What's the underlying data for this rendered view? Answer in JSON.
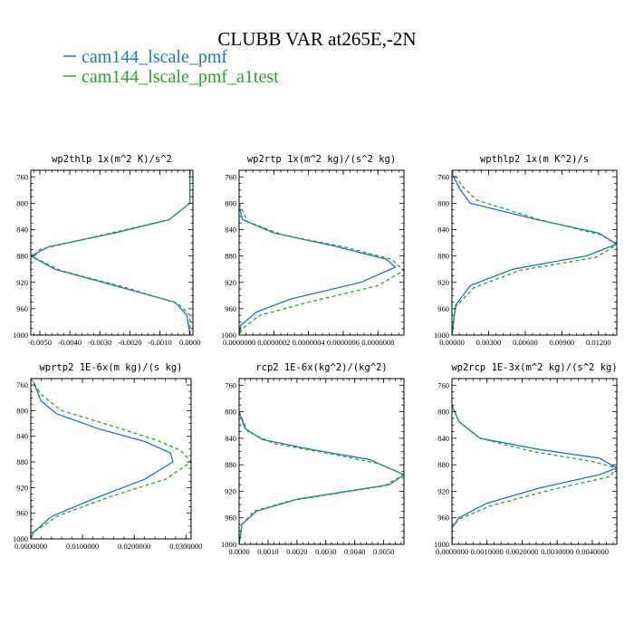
{
  "figure": {
    "title": "CLUBB VAR at265E,-2N",
    "legend": [
      {
        "label": "cam144_lscale_pmf",
        "color": "#1f77b4"
      },
      {
        "label": "cam144_lscale_pmf_a1test",
        "color": "#2ca02c"
      }
    ]
  },
  "chart_data": [
    {
      "type": "line",
      "title": "wp2thlp   1x(m^2 K)/s^2",
      "ylim": [
        1000,
        750
      ],
      "yticks": [
        760,
        800,
        840,
        880,
        920,
        960,
        1000
      ],
      "xlim": [
        -0.0053,
        0.0001
      ],
      "xticks": [
        -0.005,
        -0.004,
        -0.003,
        -0.002,
        -0.001,
        0.0
      ],
      "xticklabels": [
        "-0.0050",
        "-0.0040",
        "-0.0030",
        "-0.0020",
        "-0.0010",
        "0.0000"
      ],
      "series": [
        {
          "name": "cam144_lscale_pmf",
          "color": "#1f77b4",
          "dash": "",
          "points": [
            [
              0.0,
              750
            ],
            [
              0.0,
              800
            ],
            [
              -0.0007,
              825
            ],
            [
              -0.0025,
              845
            ],
            [
              -0.0047,
              866
            ],
            [
              -0.0053,
              880
            ],
            [
              -0.0045,
              900
            ],
            [
              -0.0025,
              925
            ],
            [
              -0.0005,
              950
            ],
            [
              -0.0001,
              970
            ],
            [
              0.0,
              1000
            ]
          ]
        },
        {
          "name": "cam144_lscale_pmf_a1test",
          "color": "#2ca02c",
          "dash": "4,3",
          "points": [
            [
              0.0,
              750
            ],
            [
              0.0,
              800
            ],
            [
              -0.0007,
              825
            ],
            [
              -0.0028,
              847
            ],
            [
              -0.005,
              870
            ],
            [
              -0.0052,
              882
            ],
            [
              -0.0043,
              902
            ],
            [
              -0.0022,
              927
            ],
            [
              -0.0004,
              952
            ],
            [
              0.0,
              970
            ],
            [
              0.0,
              1000
            ]
          ]
        }
      ]
    },
    {
      "type": "line",
      "title": "wp2rtp   1x(m^2 kg)/(s^2 kg)",
      "ylim": [
        1000,
        750
      ],
      "yticks": [
        760,
        800,
        840,
        880,
        920,
        960,
        1000
      ],
      "xlim": [
        0.0,
        9.5e-07
      ],
      "xticks": [
        0.0,
        2e-07,
        4e-07,
        6e-07,
        8e-07
      ],
      "xticklabels": [
        "0.0000000",
        "0.0000002",
        "0.0000004",
        "0.0000006",
        "0.0000008"
      ],
      "series": [
        {
          "name": "cam144_lscale_pmf",
          "color": "#1f77b4",
          "dash": "",
          "points": [
            [
              0.0,
              805
            ],
            [
              2e-08,
              825
            ],
            [
              2e-07,
              845
            ],
            [
              5.5e-07,
              865
            ],
            [
              8.5e-07,
              885
            ],
            [
              9e-07,
              897
            ],
            [
              7e-07,
              920
            ],
            [
              3e-07,
              945
            ],
            [
              1e-07,
              965
            ],
            [
              1e-08,
              985
            ],
            [
              0.0,
              1000
            ]
          ]
        },
        {
          "name": "cam144_lscale_pmf_a1test",
          "color": "#2ca02c",
          "dash": "4,3",
          "points": [
            [
              0.0,
              800
            ],
            [
              5e-08,
              828
            ],
            [
              2.5e-07,
              848
            ],
            [
              6e-07,
              866
            ],
            [
              8.8e-07,
              885
            ],
            [
              9.5e-07,
              902
            ],
            [
              8e-07,
              925
            ],
            [
              4e-07,
              950
            ],
            [
              1.2e-07,
              970
            ],
            [
              2e-08,
              990
            ],
            [
              0.0,
              1000
            ]
          ]
        }
      ]
    },
    {
      "type": "line",
      "title": "wpthlp2   1x(m K^2)/s",
      "ylim": [
        1000,
        750
      ],
      "yticks": [
        760,
        800,
        840,
        880,
        920,
        960,
        1000
      ],
      "xlim": [
        0.0,
        0.0135
      ],
      "xticks": [
        0.0,
        0.003,
        0.006,
        0.009,
        0.012
      ],
      "xticklabels": [
        "0.00000",
        "0.00300",
        "0.00600",
        "0.00900",
        "0.01200"
      ],
      "series": [
        {
          "name": "cam144_lscale_pmf",
          "color": "#1f77b4",
          "dash": "",
          "points": [
            [
              0.0,
              755
            ],
            [
              0.0007,
              780
            ],
            [
              0.0015,
              800
            ],
            [
              0.007,
              825
            ],
            [
              0.012,
              845
            ],
            [
              0.0135,
              862
            ],
            [
              0.011,
              880
            ],
            [
              0.005,
              900
            ],
            [
              0.0015,
              925
            ],
            [
              0.0003,
              955
            ],
            [
              0.0,
              1000
            ]
          ]
        },
        {
          "name": "cam144_lscale_pmf_a1test",
          "color": "#2ca02c",
          "dash": "4,3",
          "points": [
            [
              0.0,
              750
            ],
            [
              0.0009,
              775
            ],
            [
              0.002,
              795
            ],
            [
              0.0072,
              825
            ],
            [
              0.0122,
              848
            ],
            [
              0.0135,
              863
            ],
            [
              0.0118,
              882
            ],
            [
              0.0055,
              902
            ],
            [
              0.0018,
              928
            ],
            [
              0.0003,
              957
            ],
            [
              0.0,
              1000
            ]
          ]
        }
      ]
    },
    {
      "type": "line",
      "title": "wprtp2   1E-6x(m kg)/(s kg)",
      "ylim": [
        1000,
        750
      ],
      "yticks": [
        760,
        800,
        840,
        880,
        920,
        960,
        1000
      ],
      "xlim": [
        0.0,
        0.031
      ],
      "xticks": [
        0.0,
        0.01,
        0.02,
        0.03
      ],
      "xticklabels": [
        "0.0000000",
        "0.0100000",
        "0.0200000",
        "0.0300000"
      ],
      "series": [
        {
          "name": "cam144_lscale_pmf",
          "color": "#1f77b4",
          "dash": "",
          "points": [
            [
              0.0005,
              755
            ],
            [
              0.002,
              785
            ],
            [
              0.005,
              805
            ],
            [
              0.013,
              828
            ],
            [
              0.022,
              848
            ],
            [
              0.027,
              866
            ],
            [
              0.0275,
              880
            ],
            [
              0.022,
              907
            ],
            [
              0.012,
              938
            ],
            [
              0.004,
              965
            ],
            [
              0.0005,
              990
            ],
            [
              0.0,
              1000
            ]
          ]
        },
        {
          "name": "cam144_lscale_pmf_a1test",
          "color": "#2ca02c",
          "dash": "4,3",
          "points": [
            [
              0.0,
              750
            ],
            [
              0.002,
              775
            ],
            [
              0.006,
              800
            ],
            [
              0.015,
              822
            ],
            [
              0.024,
              845
            ],
            [
              0.029,
              862
            ],
            [
              0.031,
              880
            ],
            [
              0.026,
              907
            ],
            [
              0.015,
              935
            ],
            [
              0.005,
              965
            ],
            [
              0.0005,
              990
            ],
            [
              0.0,
              1000
            ]
          ]
        }
      ]
    },
    {
      "type": "line",
      "title": "rcp2   1E-6x(kg^2)/(kg^2)",
      "ylim": [
        1000,
        750
      ],
      "yticks": [
        760,
        800,
        840,
        880,
        920,
        960,
        1000
      ],
      "xlim": [
        0.0,
        0.0057
      ],
      "xticks": [
        0.0,
        0.001,
        0.002,
        0.003,
        0.004,
        0.005
      ],
      "xticklabels": [
        "0.0000",
        "0.0010",
        "0.0020",
        "0.0030",
        "0.0040",
        "0.0050"
      ],
      "series": [
        {
          "name": "cam144_lscale_pmf",
          "color": "#1f77b4",
          "dash": "",
          "points": [
            [
              0.0,
              800
            ],
            [
              0.0002,
              825
            ],
            [
              0.0008,
              842
            ],
            [
              0.0025,
              857
            ],
            [
              0.0045,
              872
            ],
            [
              0.0057,
              895
            ],
            [
              0.0052,
              910
            ],
            [
              0.002,
              932
            ],
            [
              0.0006,
              950
            ],
            [
              0.0001,
              970
            ],
            [
              0.0,
              1000
            ]
          ]
        },
        {
          "name": "cam144_lscale_pmf_a1test",
          "color": "#2ca02c",
          "dash": "4,3",
          "points": [
            [
              0.0,
              800
            ],
            [
              0.0003,
              830
            ],
            [
              0.0012,
              848
            ],
            [
              0.003,
              862
            ],
            [
              0.0048,
              878
            ],
            [
              0.0057,
              895
            ],
            [
              0.005,
              912
            ],
            [
              0.0018,
              934
            ],
            [
              0.0005,
              950
            ],
            [
              0.0001,
              970
            ],
            [
              0.0,
              1000
            ]
          ]
        }
      ]
    },
    {
      "type": "line",
      "title": "wp2rcp   1E-3x(m^2 kg)/(s^2 kg)",
      "ylim": [
        1000,
        750
      ],
      "yticks": [
        760,
        800,
        840,
        880,
        920,
        960,
        1000
      ],
      "xlim": [
        0.0,
        0.0047
      ],
      "xticks": [
        0.0,
        0.001,
        0.002,
        0.003,
        0.004
      ],
      "xticklabels": [
        "0.0000000",
        "0.0010000",
        "0.0020000",
        "0.0030000",
        "0.0040000"
      ],
      "series": [
        {
          "name": "cam144_lscale_pmf",
          "color": "#1f77b4",
          "dash": "",
          "points": [
            [
              0.0,
              790
            ],
            [
              0.0002,
              815
            ],
            [
              0.0008,
              840
            ],
            [
              0.0025,
              857
            ],
            [
              0.0042,
              870
            ],
            [
              0.0047,
              885
            ],
            [
              0.0042,
              895
            ],
            [
              0.0025,
              915
            ],
            [
              0.001,
              938
            ],
            [
              0.0002,
              960
            ],
            [
              0.0,
              975
            ],
            [
              0.0,
              1000
            ]
          ]
        },
        {
          "name": "cam144_lscale_pmf_a1test",
          "color": "#2ca02c",
          "dash": "4,3",
          "points": [
            [
              0.0,
              790
            ],
            [
              0.0002,
              815
            ],
            [
              0.0008,
              840
            ],
            [
              0.0023,
              860
            ],
            [
              0.004,
              875
            ],
            [
              0.0047,
              885
            ],
            [
              0.0045,
              898
            ],
            [
              0.0028,
              918
            ],
            [
              0.0011,
              942
            ],
            [
              0.0002,
              962
            ],
            [
              0.0,
              975
            ],
            [
              0.0,
              1000
            ]
          ]
        }
      ]
    }
  ]
}
